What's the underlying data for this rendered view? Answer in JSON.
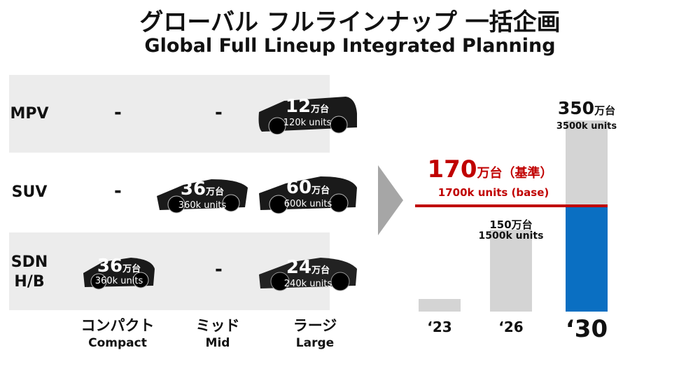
{
  "title": {
    "jp": "グローバル フルラインナップ 一括企画",
    "en": "Global Full Lineup Integrated Planning"
  },
  "columns": [
    {
      "jp": "コンパクト",
      "en": "Compact"
    },
    {
      "jp": "ミッド",
      "en": "Mid"
    },
    {
      "jp": "ラージ",
      "en": "Large"
    }
  ],
  "rows": [
    {
      "label": "MPV",
      "cells": [
        "-",
        "-",
        {
          "value": "12",
          "unit": "万台",
          "en": "120k units"
        }
      ]
    },
    {
      "label": "SUV",
      "cells": [
        "-",
        {
          "value": "36",
          "unit": "万台",
          "en": "360k units"
        },
        {
          "value": "60",
          "unit": "万台",
          "en": "600k units"
        }
      ]
    },
    {
      "label_line1": "SDN",
      "label_line2": "H/B",
      "cells": [
        {
          "value": "36",
          "unit": "万台",
          "en": "360k units"
        },
        "-",
        {
          "value": "24",
          "unit": "万台",
          "en": "240k units"
        }
      ]
    }
  ],
  "chart_data": {
    "type": "bar",
    "categories": [
      "‘23",
      "‘26",
      "‘30"
    ],
    "values": [
      23,
      150,
      350
    ],
    "unit": "万台",
    "labels": [
      null,
      {
        "jp_value": "150",
        "jp_unit": "万台",
        "en": "1500k units"
      },
      {
        "jp_value": "350",
        "jp_unit": "万台",
        "en": "3500k units"
      }
    ],
    "baseline": {
      "value": 170,
      "jp_value": "170",
      "jp_unit": "万台",
      "jp_note": "（基準）",
      "en": "1700k units (base)",
      "color": "#c00000"
    },
    "colors": {
      "bar": "#d4d4d4",
      "above_base": "#0a6fc2"
    }
  }
}
